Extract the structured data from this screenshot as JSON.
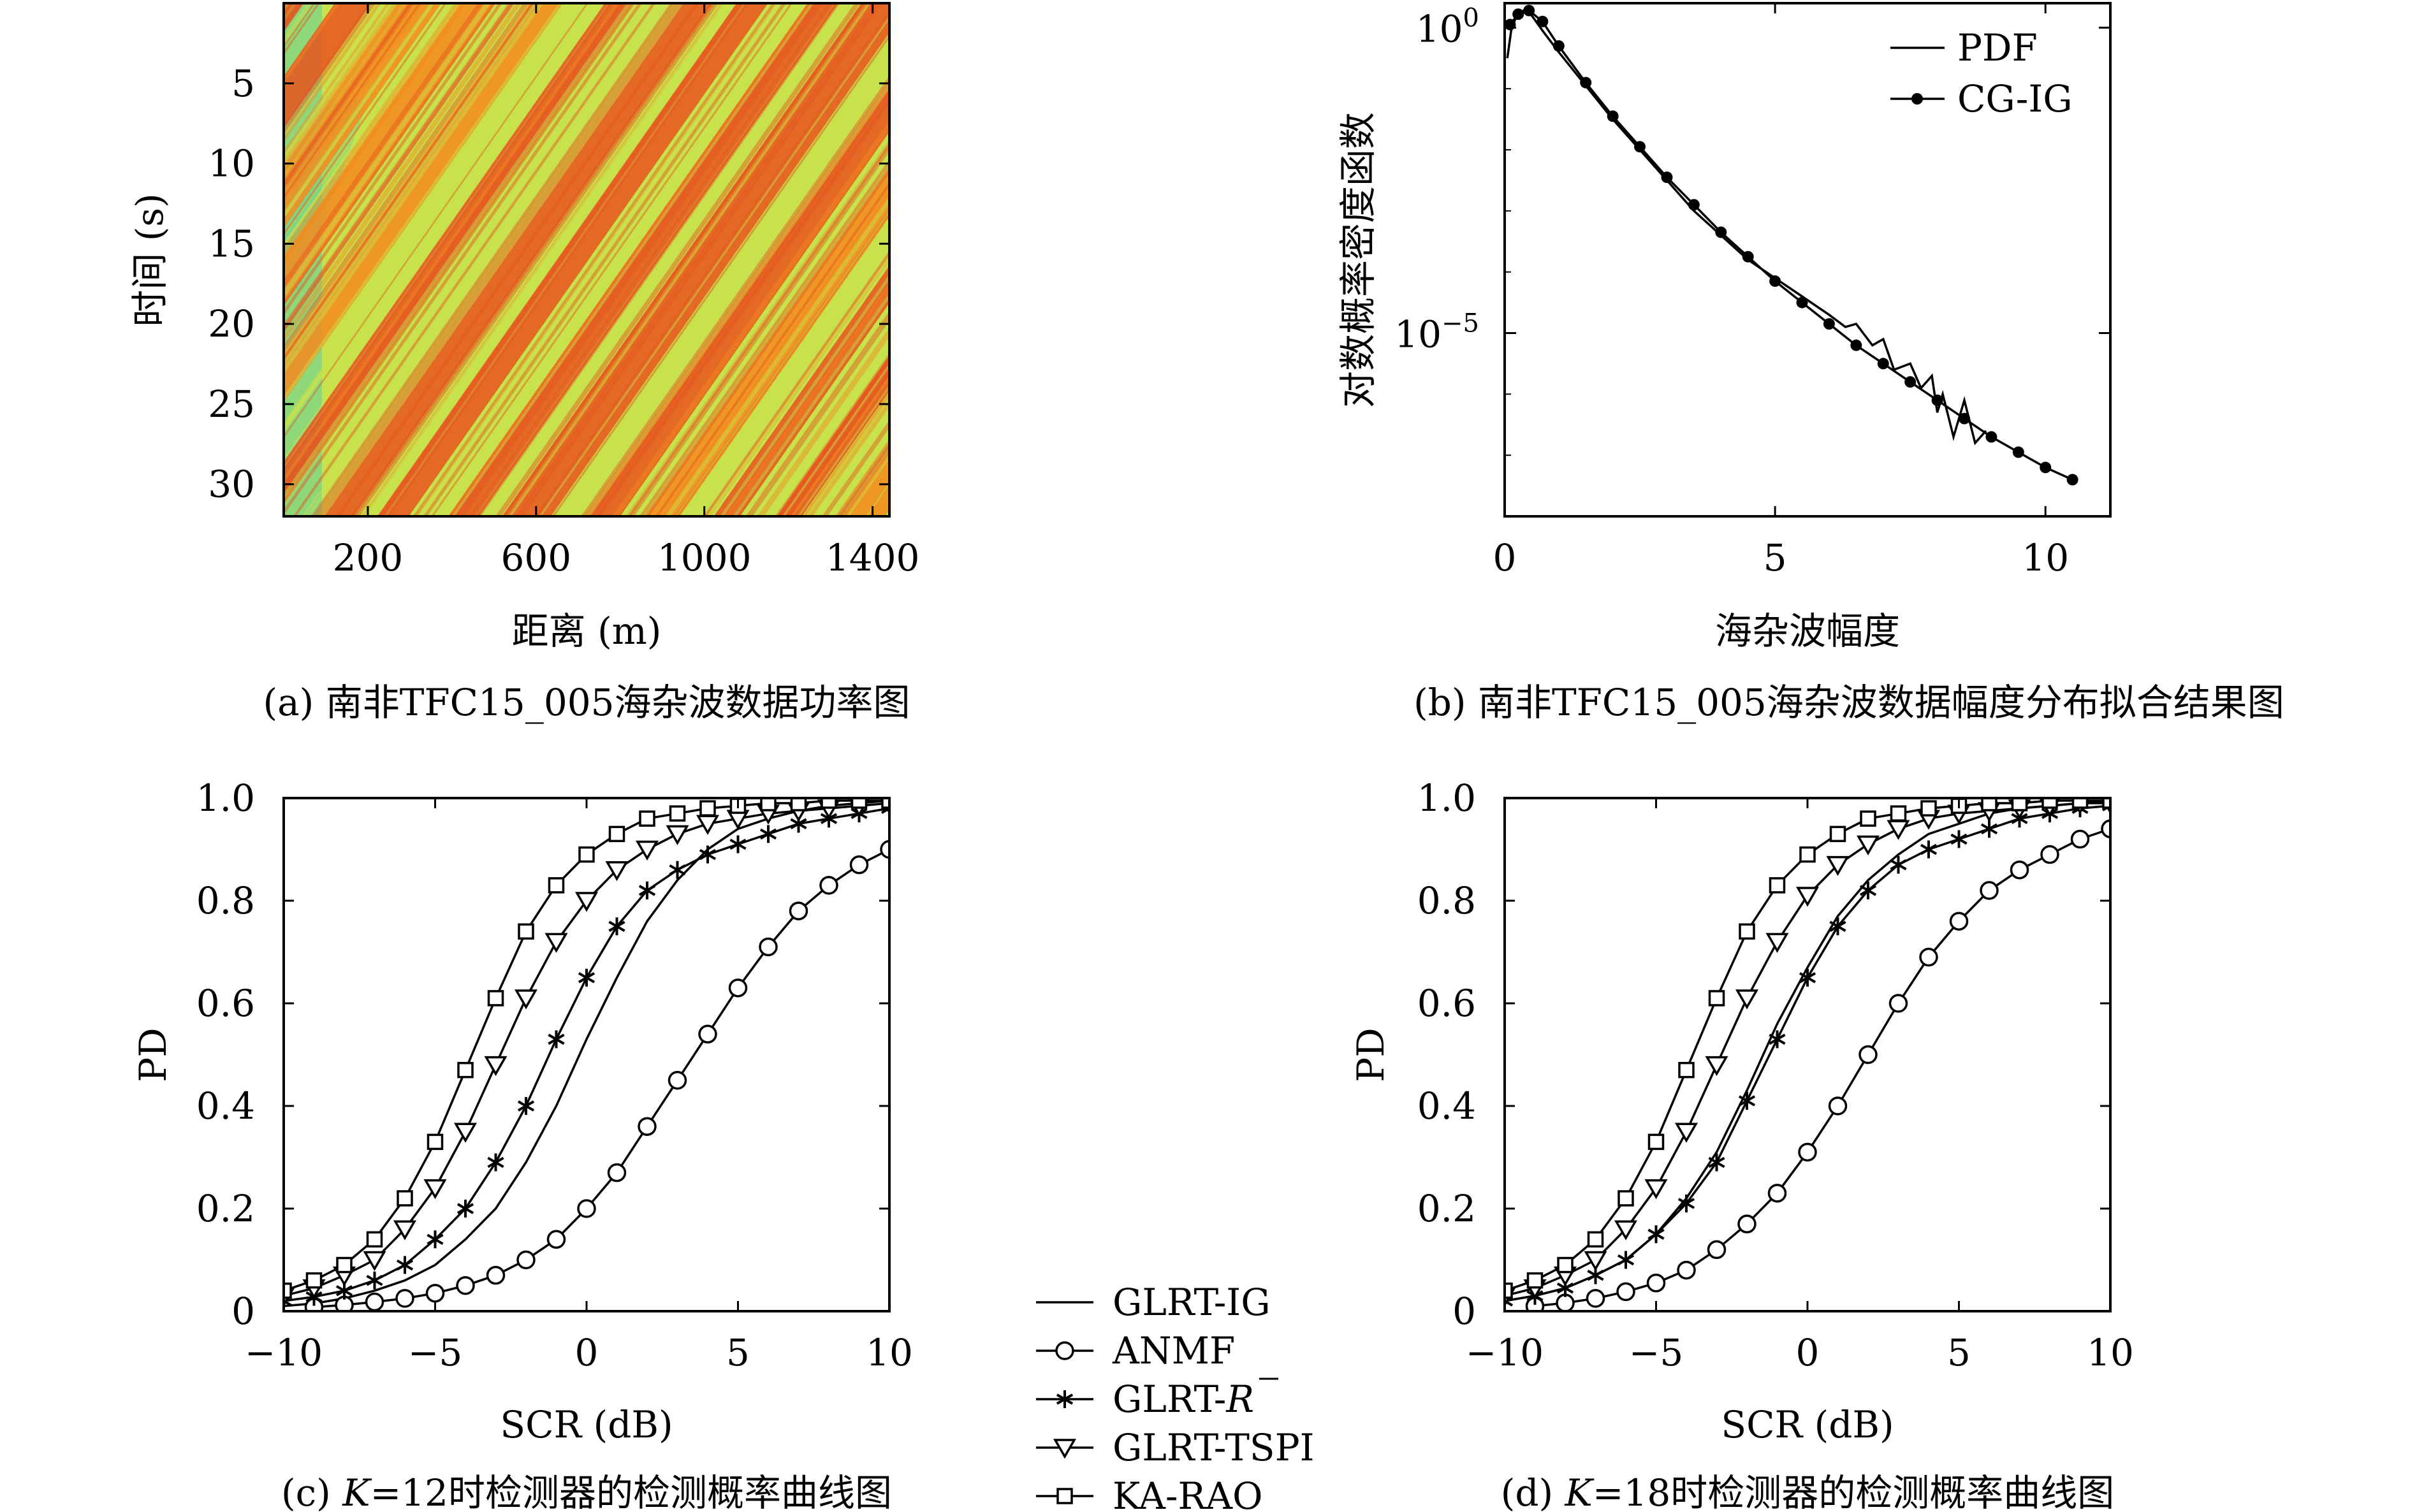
{
  "panel_a": {
    "caption": "(a) 南非TFC15_005海杂波数据功率图",
    "xlabel": "距离 (m)",
    "ylabel": "时间 (s)",
    "xticks": [
      200,
      600,
      1000,
      1400
    ],
    "yticks": [
      5,
      10,
      15,
      20,
      25,
      30
    ],
    "colors": {
      "background": "#c7e24b",
      "band": "#f58a1e",
      "band_dark": "#e7541f",
      "cool": "#5fd0a0"
    }
  },
  "panel_b": {
    "caption": "(b) 南非TFC15_005海杂波数据幅度分布拟合结果图",
    "xlabel": "海杂波幅度",
    "ylabel": "对数概率密度函数",
    "xticks": [
      0,
      5,
      10
    ],
    "ytick_labels": [
      {
        "base": "10",
        "exp": "0",
        "value": 1
      },
      {
        "base": "10",
        "exp": "−5",
        "value": 1e-05
      }
    ],
    "legend": {
      "pdf": "PDF",
      "cgig": "CG-IG",
      "placement": "top-right"
    }
  },
  "panel_c": {
    "caption_prefix": "(c) ",
    "caption_var": "K",
    "caption_suffix": "=12时检测器的检测概率曲线图",
    "xlabel": "SCR (dB)",
    "ylabel": "PD",
    "xticks": [
      "−10",
      "−5",
      "0",
      "5",
      "10"
    ],
    "yticks": [
      "0",
      "0.2",
      "0.4",
      "0.6",
      "0.8",
      "1.0"
    ]
  },
  "panel_d": {
    "caption_prefix": "(d) ",
    "caption_var": "K",
    "caption_suffix": "=18时检测器的检测概率曲线图",
    "xlabel": "SCR (dB)",
    "ylabel": "PD",
    "xticks": [
      "−10",
      "−5",
      "0",
      "5",
      "10"
    ],
    "yticks": [
      "0",
      "0.2",
      "0.4",
      "0.6",
      "0.8",
      "1.0"
    ]
  },
  "legend_cd": {
    "items": [
      {
        "label": "GLRT-IG",
        "marker": "none"
      },
      {
        "label": "ANMF",
        "marker": "circle"
      },
      {
        "label": "GLRT-",
        "label_var": "R",
        "marker": "star"
      },
      {
        "label": "GLRT-TSPI",
        "marker": "triangle-down"
      },
      {
        "label": "KA-RAO",
        "marker": "square"
      }
    ]
  },
  "chart_data": [
    {
      "type": "heatmap",
      "panel": "a",
      "xlabel": "距离 (m)",
      "ylabel": "时间 (s)",
      "xlim": [
        0,
        1440
      ],
      "ylim": [
        0,
        32
      ],
      "y_direction": "down",
      "pattern": "diagonal streaks"
    },
    {
      "type": "line",
      "panel": "b",
      "xlabel": "海杂波幅度",
      "ylabel": "对数概率密度函数",
      "xlim": [
        0,
        11.2
      ],
      "ylim_log10": [
        -8,
        0.4
      ],
      "y_scale": "log",
      "series": [
        {
          "name": "PDF",
          "x": [
            0.05,
            0.12,
            0.22,
            0.35,
            0.5,
            0.7,
            1.0,
            1.5,
            2.0,
            2.5,
            3.0,
            3.5,
            4.0,
            4.5,
            5.0,
            5.5,
            6.0,
            6.3,
            6.5,
            6.8,
            7.0,
            7.2,
            7.5,
            7.7,
            7.9,
            8.0,
            8.1,
            8.3,
            8.5,
            8.7,
            8.9
          ],
          "log10_y": [
            -0.5,
            -0.05,
            0.2,
            0.28,
            0.2,
            -0.05,
            -0.4,
            -0.95,
            -1.5,
            -2.0,
            -2.5,
            -3.0,
            -3.4,
            -3.8,
            -4.1,
            -4.4,
            -4.7,
            -4.9,
            -4.85,
            -5.2,
            -5.1,
            -5.6,
            -5.5,
            -5.9,
            -5.7,
            -6.3,
            -6.0,
            -6.7,
            -6.1,
            -6.8,
            -6.6
          ]
        },
        {
          "name": "CG-IG",
          "x": [
            0.1,
            0.25,
            0.45,
            0.7,
            1.0,
            1.5,
            2.0,
            2.5,
            3.0,
            3.5,
            4.0,
            4.5,
            5.0,
            5.5,
            6.0,
            6.5,
            7.0,
            7.5,
            8.0,
            8.5,
            9.0,
            9.5,
            10.0,
            10.5
          ],
          "log10_y": [
            0.05,
            0.22,
            0.28,
            0.1,
            -0.3,
            -0.9,
            -1.45,
            -1.95,
            -2.45,
            -2.9,
            -3.35,
            -3.75,
            -4.15,
            -4.5,
            -4.85,
            -5.2,
            -5.5,
            -5.8,
            -6.1,
            -6.4,
            -6.7,
            -6.95,
            -7.2,
            -7.4
          ]
        }
      ]
    },
    {
      "type": "line",
      "panel": "c",
      "xlabel": "SCR (dB)",
      "ylabel": "PD",
      "xlim": [
        -10,
        10
      ],
      "ylim": [
        0,
        1
      ],
      "series": [
        {
          "name": "GLRT-IG",
          "marker": "none",
          "x": [
            -10,
            -9,
            -8,
            -7,
            -6,
            -5,
            -4,
            -3,
            -2,
            -1,
            0,
            1,
            2,
            3,
            4,
            5,
            6,
            7,
            8,
            9,
            10
          ],
          "y": [
            0.01,
            0.015,
            0.025,
            0.04,
            0.06,
            0.09,
            0.14,
            0.2,
            0.29,
            0.4,
            0.53,
            0.65,
            0.76,
            0.84,
            0.9,
            0.94,
            0.96,
            0.975,
            0.985,
            0.99,
            0.995
          ]
        },
        {
          "name": "ANMF",
          "marker": "circle",
          "x": [
            -9,
            -8,
            -7,
            -6,
            -5,
            -4,
            -3,
            -2,
            -1,
            0,
            1,
            2,
            3,
            4,
            5,
            6,
            7,
            8,
            9,
            10
          ],
          "y": [
            0.008,
            0.012,
            0.018,
            0.025,
            0.035,
            0.05,
            0.07,
            0.1,
            0.14,
            0.2,
            0.27,
            0.36,
            0.45,
            0.54,
            0.63,
            0.71,
            0.78,
            0.83,
            0.87,
            0.9
          ]
        },
        {
          "name": "GLRT-R",
          "marker": "star",
          "x": [
            -10,
            -9,
            -8,
            -7,
            -6,
            -5,
            -4,
            -3,
            -2,
            -1,
            0,
            1,
            2,
            3,
            4,
            5,
            6,
            7,
            8,
            9,
            10
          ],
          "y": [
            0.02,
            0.028,
            0.04,
            0.06,
            0.09,
            0.14,
            0.2,
            0.29,
            0.4,
            0.53,
            0.65,
            0.75,
            0.82,
            0.86,
            0.89,
            0.91,
            0.93,
            0.95,
            0.96,
            0.97,
            0.98
          ]
        },
        {
          "name": "GLRT-TSPI",
          "marker": "triangle-down",
          "x": [
            -10,
            -9,
            -8,
            -7,
            -6,
            -5,
            -4,
            -3,
            -2,
            -1,
            0,
            1,
            2,
            3,
            4,
            5,
            6,
            7,
            8,
            9,
            10
          ],
          "y": [
            0.03,
            0.045,
            0.07,
            0.1,
            0.16,
            0.24,
            0.35,
            0.48,
            0.61,
            0.72,
            0.8,
            0.86,
            0.9,
            0.93,
            0.95,
            0.96,
            0.97,
            0.975,
            0.98,
            0.985,
            0.99
          ]
        },
        {
          "name": "KA-RAO",
          "marker": "square",
          "x": [
            -10,
            -9,
            -8,
            -7,
            -6,
            -5,
            -4,
            -3,
            -2,
            -1,
            0,
            1,
            2,
            3,
            4,
            5,
            6,
            7,
            8,
            9,
            10
          ],
          "y": [
            0.04,
            0.06,
            0.09,
            0.14,
            0.22,
            0.33,
            0.47,
            0.61,
            0.74,
            0.83,
            0.89,
            0.93,
            0.96,
            0.97,
            0.98,
            0.985,
            0.99,
            0.99,
            0.995,
            0.995,
            0.995
          ]
        }
      ]
    },
    {
      "type": "line",
      "panel": "d",
      "xlabel": "SCR (dB)",
      "ylabel": "PD",
      "xlim": [
        -10,
        10
      ],
      "ylim": [
        0,
        1
      ],
      "series": [
        {
          "name": "GLRT-IG",
          "marker": "none",
          "x": [
            -10,
            -9,
            -8,
            -7,
            -6,
            -5,
            -4,
            -3,
            -2,
            -1,
            0,
            1,
            2,
            3,
            4,
            5,
            6,
            7,
            8,
            9,
            10
          ],
          "y": [
            0.02,
            0.03,
            0.045,
            0.07,
            0.1,
            0.15,
            0.22,
            0.31,
            0.43,
            0.56,
            0.67,
            0.77,
            0.84,
            0.89,
            0.93,
            0.95,
            0.97,
            0.98,
            0.985,
            0.99,
            0.995
          ]
        },
        {
          "name": "ANMF",
          "marker": "circle",
          "x": [
            -9,
            -8,
            -7,
            -6,
            -5,
            -4,
            -3,
            -2,
            -1,
            0,
            1,
            2,
            3,
            4,
            5,
            6,
            7,
            8,
            9,
            10
          ],
          "y": [
            0.01,
            0.016,
            0.025,
            0.038,
            0.055,
            0.08,
            0.12,
            0.17,
            0.23,
            0.31,
            0.4,
            0.5,
            0.6,
            0.69,
            0.76,
            0.82,
            0.86,
            0.89,
            0.92,
            0.94
          ]
        },
        {
          "name": "GLRT-R",
          "marker": "star",
          "x": [
            -10,
            -9,
            -8,
            -7,
            -6,
            -5,
            -4,
            -3,
            -2,
            -1,
            0,
            1,
            2,
            3,
            4,
            5,
            6,
            7,
            8,
            9,
            10
          ],
          "y": [
            0.02,
            0.03,
            0.045,
            0.07,
            0.1,
            0.15,
            0.21,
            0.29,
            0.41,
            0.53,
            0.65,
            0.75,
            0.82,
            0.87,
            0.9,
            0.92,
            0.94,
            0.96,
            0.97,
            0.98,
            0.985
          ]
        },
        {
          "name": "GLRT-TSPI",
          "marker": "triangle-down",
          "x": [
            -10,
            -9,
            -8,
            -7,
            -6,
            -5,
            -4,
            -3,
            -2,
            -1,
            0,
            1,
            2,
            3,
            4,
            5,
            6,
            7,
            8,
            9,
            10
          ],
          "y": [
            0.03,
            0.045,
            0.07,
            0.1,
            0.16,
            0.24,
            0.35,
            0.48,
            0.61,
            0.72,
            0.81,
            0.87,
            0.91,
            0.94,
            0.96,
            0.97,
            0.975,
            0.98,
            0.985,
            0.99,
            0.99
          ]
        },
        {
          "name": "KA-RAO",
          "marker": "square",
          "x": [
            -10,
            -9,
            -8,
            -7,
            -6,
            -5,
            -4,
            -3,
            -2,
            -1,
            0,
            1,
            2,
            3,
            4,
            5,
            6,
            7,
            8,
            9,
            10
          ],
          "y": [
            0.04,
            0.06,
            0.09,
            0.14,
            0.22,
            0.33,
            0.47,
            0.61,
            0.74,
            0.83,
            0.89,
            0.93,
            0.96,
            0.97,
            0.98,
            0.985,
            0.99,
            0.99,
            0.995,
            0.995,
            0.995
          ]
        }
      ]
    }
  ]
}
